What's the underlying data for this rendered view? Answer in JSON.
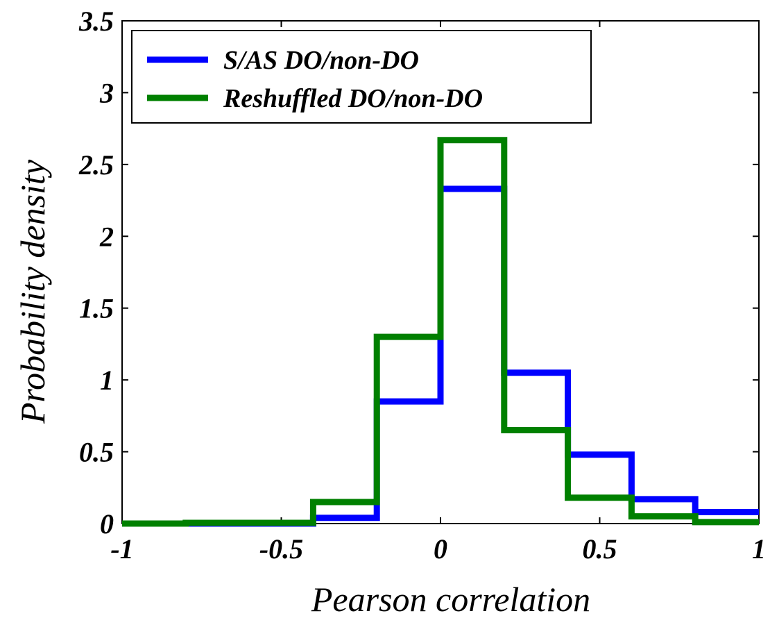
{
  "chart_data": {
    "type": "line",
    "step": true,
    "xlabel": "Pearson correlation",
    "ylabel": "Probability density",
    "xlim": [
      -1,
      1
    ],
    "ylim": [
      0,
      3.5
    ],
    "x_ticks": [
      "-1",
      "-0.5",
      "0",
      "0.5",
      "1"
    ],
    "y_ticks": [
      "0",
      "0.5",
      "1",
      "1.5",
      "2",
      "2.5",
      "3",
      "3.5"
    ],
    "bin_edges": [
      -1,
      -0.8,
      -0.6,
      -0.4,
      -0.2,
      0,
      0.2,
      0.4,
      0.6,
      0.8,
      1
    ],
    "legend_position": "top-left",
    "grid": false,
    "series": [
      {
        "name": "S/AS DO/non-DO",
        "color": "#0000ff",
        "values": [
          0,
          0,
          0,
          0.04,
          0.85,
          2.33,
          1.05,
          0.48,
          0.17,
          0.08
        ]
      },
      {
        "name": "Reshuffled DO/non-DO",
        "color": "#008000",
        "values": [
          0,
          0.005,
          0.005,
          0.15,
          1.3,
          2.67,
          0.65,
          0.18,
          0.05,
          0.01
        ]
      }
    ]
  }
}
